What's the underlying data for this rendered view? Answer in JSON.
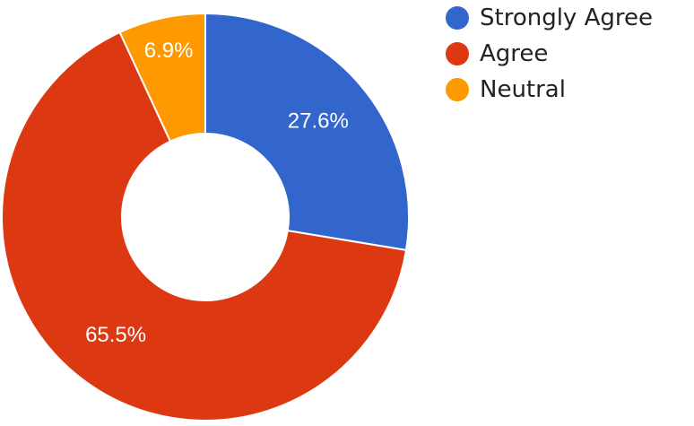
{
  "chart_data": {
    "type": "pie",
    "donut": true,
    "categories": [
      "Strongly Agree",
      "Agree",
      "Neutral"
    ],
    "values": [
      27.6,
      65.5,
      6.9
    ],
    "value_labels": [
      "27.6%",
      "65.5%",
      "6.9%"
    ],
    "colors": [
      "#3366cc",
      "#dc3912",
      "#ff9900"
    ],
    "legend_position": "top-right",
    "title": ""
  }
}
